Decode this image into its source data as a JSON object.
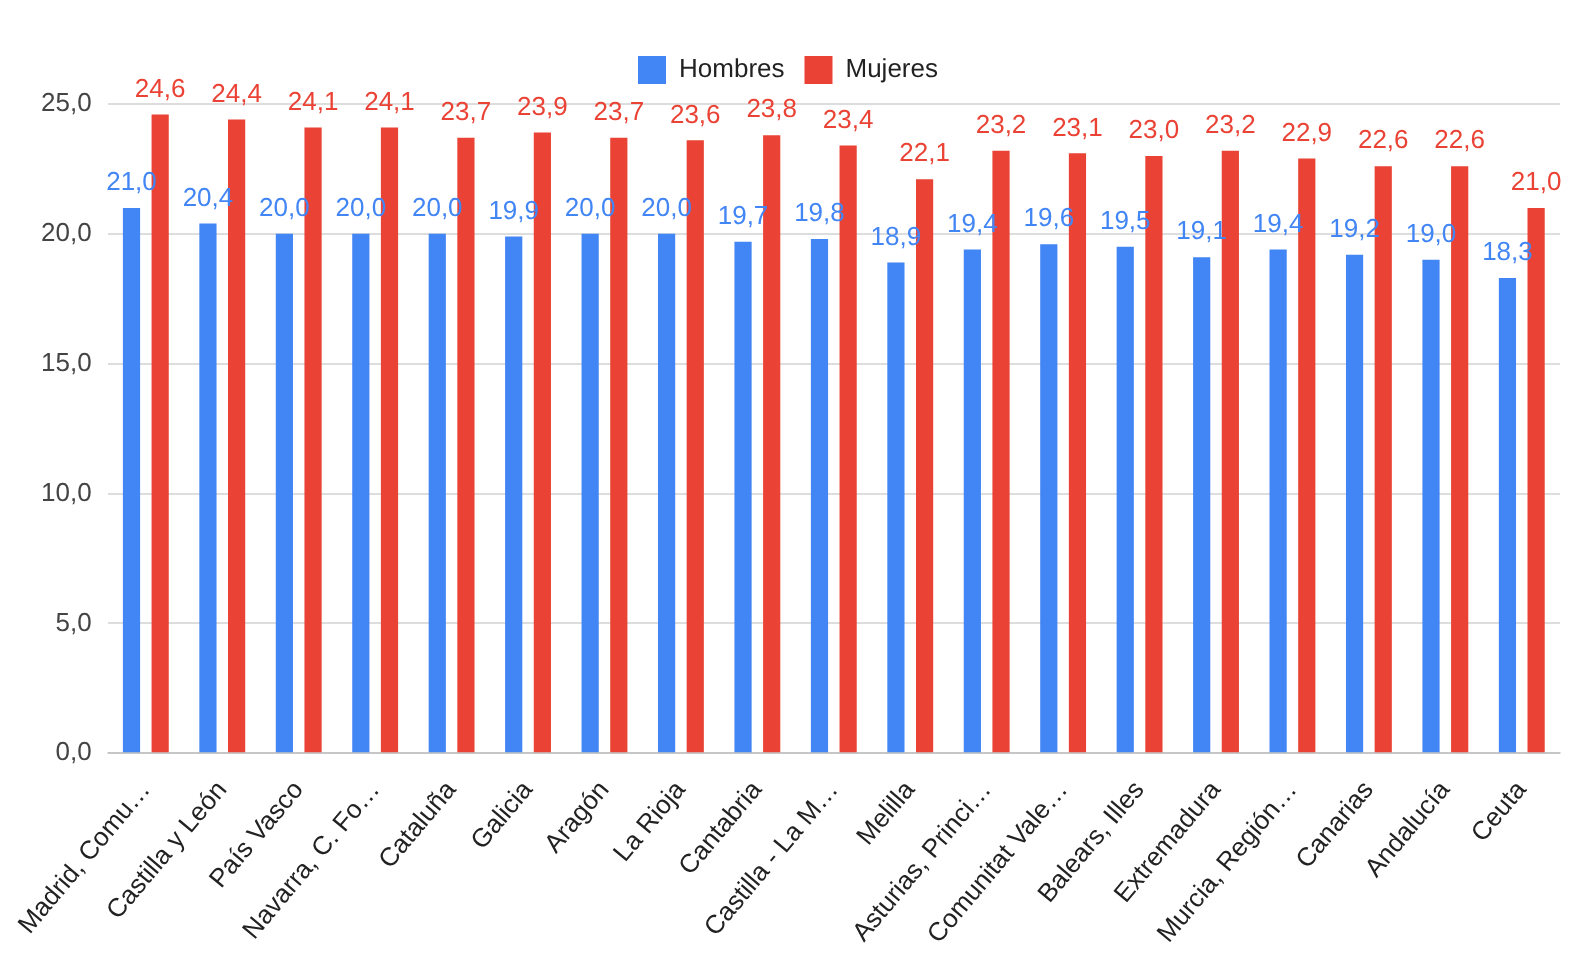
{
  "chart_data": {
    "type": "bar",
    "categories": [
      "Madrid, Comu…",
      "Castilla y León",
      "País Vasco",
      "Navarra, C. Fo…",
      "Cataluña",
      "Galicia",
      "Aragón",
      "La Rioja",
      "Cantabria",
      "Castilla - La M…",
      "Melilla",
      "Asturias, Princi…",
      "Comunitat Vale…",
      "Balears, Illes",
      "Extremadura",
      "Murcia, Región…",
      "Canarias",
      "Andalucía",
      "Ceuta"
    ],
    "series": [
      {
        "name": "Hombres",
        "color": "#4285f4",
        "values": [
          21.0,
          20.4,
          20.0,
          20.0,
          20.0,
          19.9,
          20.0,
          20.0,
          19.7,
          19.8,
          18.9,
          19.4,
          19.6,
          19.5,
          19.1,
          19.4,
          19.2,
          19.0,
          18.3
        ],
        "value_labels": [
          "21,0",
          "20,4",
          "20,0",
          "20,0",
          "20,0",
          "19,9",
          "20,0",
          "20,0",
          "19,7",
          "19,8",
          "18,9",
          "19,4",
          "19,6",
          "19,5",
          "19,1",
          "19,4",
          "19,2",
          "19,0",
          "18,3"
        ]
      },
      {
        "name": "Mujeres",
        "color": "#ea4335",
        "values": [
          24.6,
          24.4,
          24.1,
          24.1,
          23.7,
          23.9,
          23.7,
          23.6,
          23.8,
          23.4,
          22.1,
          23.2,
          23.1,
          23.0,
          23.2,
          22.9,
          22.6,
          22.6,
          21.0
        ],
        "value_labels": [
          "24,6",
          "24,4",
          "24,1",
          "24,1",
          "23,7",
          "23,9",
          "23,7",
          "23,6",
          "23,8",
          "23,4",
          "22,1",
          "23,2",
          "23,1",
          "23,0",
          "23,2",
          "22,9",
          "22,6",
          "22,6",
          "21,0"
        ]
      }
    ],
    "ylim": [
      0,
      25
    ],
    "yticks": [
      {
        "value": 0,
        "label": "0,0"
      },
      {
        "value": 5,
        "label": "5,0"
      },
      {
        "value": 10,
        "label": "10,0"
      },
      {
        "value": 15,
        "label": "15,0"
      },
      {
        "value": 20,
        "label": "20,0"
      },
      {
        "value": 25,
        "label": "25,0"
      }
    ],
    "grid": "y",
    "legend": "top"
  }
}
